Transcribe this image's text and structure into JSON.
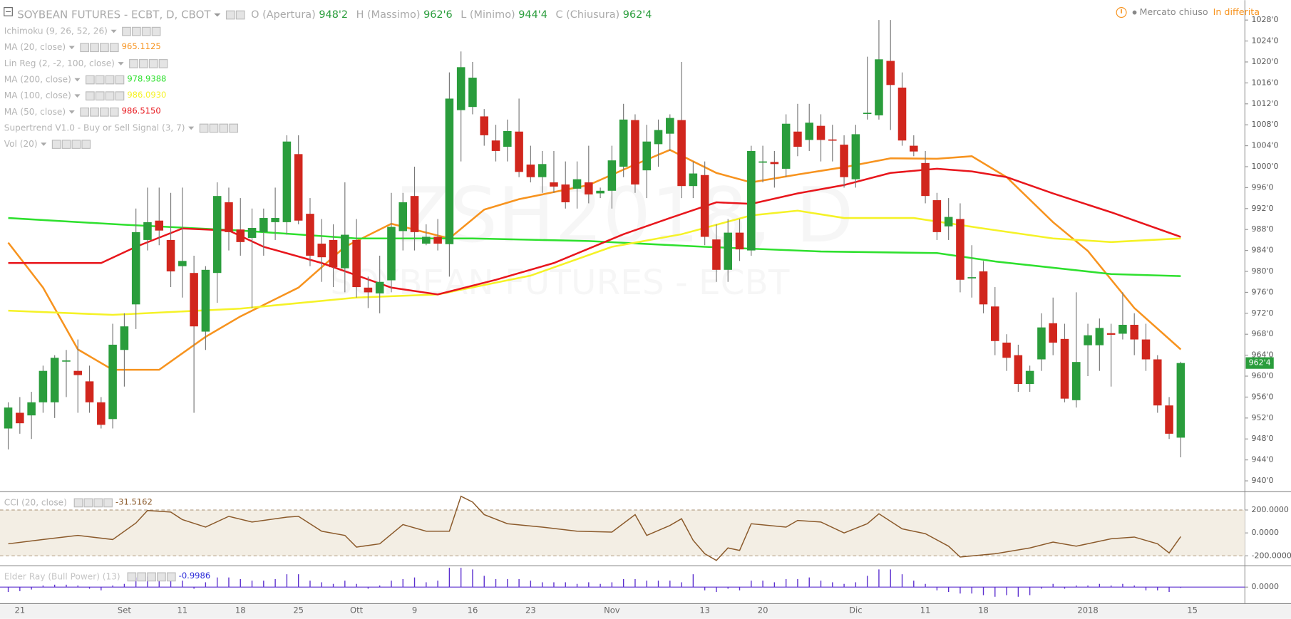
{
  "chart_data": [
    {
      "type": "candlestick",
      "title": "SOYBEAN FUTURES - ECBT, D, CBOT",
      "quote": [
        {
          "label": "O (Apertura)",
          "value": "948'2"
        },
        {
          "label": "H (Massimo)",
          "value": "962'6"
        },
        {
          "label": "L (Minimo)",
          "value": "944'4"
        },
        {
          "label": "C (Chiusura)",
          "value": "962'4"
        }
      ],
      "status": "Mercato chiuso",
      "delay": "In differita",
      "watermark": [
        "ZSH2018, D",
        "SOYBEAN FUTURES - ECBT"
      ],
      "up_color": "#2a9d3c",
      "down_color": "#d1261d",
      "categories": [
        null,
        "21",
        null,
        null,
        null,
        null,
        null,
        null,
        null,
        null,
        "Set",
        null,
        null,
        null,
        null,
        "11",
        null,
        null,
        null,
        null,
        "18",
        null,
        null,
        null,
        null,
        "25",
        null,
        null,
        null,
        null,
        "Ott",
        null,
        null,
        null,
        null,
        "9",
        null,
        null,
        null,
        null,
        "16",
        null,
        null,
        null,
        null,
        "23",
        null,
        null,
        null,
        null,
        null,
        null,
        "Nov",
        null,
        null,
        null,
        null,
        null,
        null,
        null,
        "13",
        null,
        null,
        null,
        null,
        "20",
        null,
        null,
        null,
        null,
        null,
        null,
        null,
        "Dic",
        null,
        null,
        null,
        null,
        null,
        "11",
        null,
        null,
        null,
        null,
        "18",
        null,
        null,
        null,
        null,
        null,
        null,
        null,
        null,
        "2018",
        null,
        null,
        null,
        null,
        null,
        null,
        null,
        null,
        "15"
      ],
      "open": [
        950,
        953,
        952.5,
        955,
        955,
        963,
        961,
        959,
        955,
        951.8,
        965,
        973.7,
        986,
        989.7,
        986,
        981,
        979.7,
        968.5,
        979.7,
        993.2,
        988,
        986.4,
        987.5,
        989.4,
        989.4,
        1002.4,
        991,
        985.3,
        986,
        980.6,
        986,
        976.9,
        975.8,
        978.3,
        987.7,
        994.4,
        985.3,
        986.6,
        985.2,
        1010.8,
        1011.4,
        1009.6,
        1005,
        1003.8,
        1006.7,
        1000.4,
        998,
        997,
        996.6,
        995.8,
        997,
        994.9,
        995.4,
        1000,
        1008.9,
        999.3,
        1004.3,
        1006.3,
        1008.9,
        996.3,
        998.4,
        986.1,
        980.3,
        987.4,
        984,
        1001,
        1000.9,
        999.6,
        1006.7,
        1005.1,
        1007.8,
        1005.2,
        1004.2,
        997.6,
        1010.3,
        1009.8,
        1020.2,
        1015.1,
        1004,
        1000.7,
        993.6,
        988.6,
        990,
        978.9,
        980,
        973.3,
        966.4,
        964,
        958.5,
        963.2,
        970.1,
        967.1,
        955.4,
        965.9,
        965.9,
        968.2,
        968.1,
        969.8,
        967,
        963.2,
        954.4,
        948.25,
        null
      ],
      "high": [
        955,
        956,
        957,
        962,
        964,
        965,
        967,
        962,
        956,
        970,
        972,
        992,
        996,
        996,
        995,
        996,
        983,
        981,
        997,
        996,
        994,
        992,
        992,
        996,
        1006,
        1006,
        994,
        990,
        989,
        997,
        990,
        979,
        983,
        995,
        995,
        1000,
        989,
        990,
        1018,
        1022,
        1020,
        1011,
        1008,
        1009,
        1013,
        1004,
        1003,
        1003,
        1001,
        1001,
        1004,
        996,
        1004,
        1012,
        1010,
        1008,
        1009,
        1010,
        1020,
        1001,
        1001,
        989,
        990,
        990,
        1004,
        1004,
        1003,
        1010,
        1012,
        1012,
        1010,
        1008,
        1006,
        1008,
        1021,
        1028,
        1028,
        1018,
        1006,
        1003,
        995,
        994,
        993,
        985,
        982,
        977,
        968,
        966,
        962,
        972,
        975,
        970,
        976,
        970,
        971,
        970,
        976,
        972,
        970,
        964,
        956,
        962.75,
        null
      ],
      "low": [
        946,
        949,
        948,
        953,
        952,
        956,
        953,
        953,
        950,
        950,
        958,
        969,
        984,
        985,
        977,
        975,
        953,
        965,
        974,
        984,
        983,
        973,
        983,
        986,
        987,
        989,
        981,
        978,
        977,
        976,
        975,
        973,
        972,
        976,
        984,
        984,
        985,
        984,
        979,
        1001,
        1010,
        1004,
        1001,
        1001,
        998,
        997,
        995,
        995,
        992,
        992,
        993,
        994,
        992,
        998,
        995,
        994,
        1000,
        1003,
        994,
        994,
        985,
        978,
        978,
        982,
        983,
        997,
        996,
        998,
        1002,
        1003,
        1001,
        1001,
        996,
        996,
        1009,
        1009,
        1007,
        1004,
        1002,
        993,
        986,
        986,
        976,
        975,
        972,
        964,
        961,
        957,
        957,
        961,
        964,
        955,
        954,
        960,
        961,
        958,
        967,
        964,
        961,
        953,
        948,
        944.5,
        null
      ],
      "close": [
        954,
        951,
        955,
        961,
        963.5,
        963,
        960.2,
        955,
        950.7,
        966,
        969.5,
        987.5,
        989.4,
        987.8,
        980,
        982,
        969.5,
        980.3,
        994.4,
        987.5,
        985.6,
        988.3,
        990.2,
        990.2,
        1004.8,
        989.7,
        983,
        982.7,
        980.8,
        987,
        977,
        976,
        978,
        988.5,
        993.2,
        987.5,
        986.6,
        985.3,
        1013,
        1019,
        1017,
        1006,
        1003,
        1006.8,
        999,
        998,
        1000.5,
        996.2,
        993.2,
        997.6,
        994.7,
        995.4,
        1001.2,
        1009,
        996.6,
        1004.8,
        1007,
        1009.3,
        996.3,
        998.7,
        986.6,
        980.3,
        987.4,
        984.2,
        1003,
        1001,
        1000.5,
        1008.2,
        1003.8,
        1008.4,
        1005.1,
        1005.1,
        998,
        1006.2,
        1010.3,
        1020.5,
        1015.6,
        1005,
        1002.9,
        994.4,
        987.5,
        990.4,
        978.4,
        978.9,
        973.7,
        966.7,
        963.5,
        958.5,
        961,
        969.3,
        966.4,
        955.7,
        962.7,
        967.8,
        969.2,
        967.9,
        969.8,
        967,
        963.2,
        954.4,
        949,
        962.5,
        null
      ],
      "ylim": [
        938,
        1031.8
      ],
      "yticks": [
        {
          "value": 940,
          "label": "940'0"
        },
        {
          "value": 944,
          "label": "944'0"
        },
        {
          "value": 948,
          "label": "948'0"
        },
        {
          "value": 952,
          "label": "952'0"
        },
        {
          "value": 956,
          "label": "956'0"
        },
        {
          "value": 960,
          "label": "960'0"
        },
        {
          "value": 964,
          "label": "964'0"
        },
        {
          "value": 968,
          "label": "968'0"
        },
        {
          "value": 972,
          "label": "972'0"
        },
        {
          "value": 976,
          "label": "976'0"
        },
        {
          "value": 980,
          "label": "980'0"
        },
        {
          "value": 984,
          "label": "984'0"
        },
        {
          "value": 988,
          "label": "988'0"
        },
        {
          "value": 992,
          "label": "992'0"
        },
        {
          "value": 996,
          "label": "996'0"
        },
        {
          "value": 1000,
          "label": "1000'0"
        },
        {
          "value": 1004,
          "label": "1004'0"
        },
        {
          "value": 1008,
          "label": "1008'0"
        },
        {
          "value": 1012,
          "label": "1012'0"
        },
        {
          "value": 1016,
          "label": "1016'0"
        },
        {
          "value": 1020,
          "label": "1020'0"
        },
        {
          "value": 1024,
          "label": "1024'0"
        },
        {
          "value": 1028,
          "label": "1028'0"
        }
      ],
      "studies": [
        {
          "name": "Ichimoku (9, 26, 52, 26)"
        },
        {
          "name": "MA (20, close)",
          "last": "965.1125",
          "color": "#f7931e",
          "x": [
            0,
            3,
            6,
            9,
            13,
            17,
            20,
            25,
            29,
            33,
            38,
            41,
            44,
            50,
            54,
            57,
            61,
            64,
            68,
            72,
            76,
            80,
            83,
            86,
            90,
            93,
            97,
            101
          ],
          "values": [
            985.5,
            976.9,
            965.1,
            961.2,
            961.2,
            967.5,
            971.4,
            976.9,
            984.7,
            989.1,
            986.3,
            991.8,
            993.8,
            996.5,
            1000.4,
            1003.2,
            998.8,
            997,
            998.5,
            999.9,
            1001.6,
            1001.5,
            1002,
            998,
            989.4,
            983.9,
            973,
            965.1
          ]
        },
        {
          "name": "Lin Reg (2, -2, 100, close)"
        },
        {
          "name": "MA (200, close)",
          "last": "978.9388",
          "color": "#2ee02e",
          "x": [
            0,
            10,
            20,
            30,
            40,
            50,
            60,
            70,
            80,
            85,
            95,
            101
          ],
          "values": [
            990.2,
            988.9,
            987.8,
            986.3,
            986.3,
            985.8,
            984.7,
            983.8,
            983.5,
            981.9,
            979.5,
            979.1
          ]
        },
        {
          "name": "MA (100, close)",
          "last": "986.0930",
          "color": "#f5f227",
          "x": [
            0,
            9,
            20,
            30,
            37,
            45,
            52,
            58,
            64,
            68,
            72,
            78,
            84,
            90,
            95,
            101
          ],
          "values": [
            972.5,
            971.7,
            972.9,
            975,
            975.6,
            979.2,
            984.7,
            987.1,
            990.7,
            991.6,
            990.2,
            990.2,
            988.2,
            986.3,
            985.6,
            986.3
          ]
        },
        {
          "name": "MA (50, close)",
          "last": "986.5150",
          "color": "#e8161c",
          "x": [
            0,
            8,
            11,
            15,
            19,
            22,
            27,
            33,
            37,
            42,
            47,
            53,
            57,
            61,
            64,
            68,
            72,
            76,
            80,
            83,
            86,
            90,
            95,
            101
          ],
          "values": [
            981.6,
            981.6,
            984.7,
            988.2,
            987.8,
            984.7,
            981.6,
            976.9,
            975.6,
            978.4,
            981.6,
            987.1,
            990.2,
            993.2,
            992.9,
            994.9,
            996.5,
            998.8,
            999.6,
            999.1,
            998,
            994.9,
            991.3,
            986.6
          ]
        },
        {
          "name": "Supertrend V1.0 - Buy or Sell Signal (3, 7)"
        },
        {
          "name": "Vol (20)"
        }
      ]
    },
    {
      "type": "line",
      "name": "CCI (20, close)",
      "last": "-31.5162",
      "color": "#8b5a2b",
      "band_color": "#f3eee4",
      "x": [
        0,
        3,
        6,
        9,
        11,
        12,
        14,
        15,
        17,
        19,
        21,
        24,
        25,
        27,
        29,
        30,
        32,
        34,
        36,
        38,
        39,
        40,
        41,
        43,
        46,
        49,
        52,
        54,
        55,
        57,
        58,
        59,
        60,
        61,
        62,
        63,
        64,
        67,
        68,
        70,
        72,
        74,
        75,
        77,
        79,
        81,
        82,
        85,
        88,
        90,
        92,
        95,
        97,
        99,
        100,
        101
      ],
      "values": [
        -95,
        -58,
        -22,
        -58,
        87,
        196,
        182,
        116,
        51,
        145,
        95,
        138,
        145,
        15,
        -22,
        -124,
        -95,
        73,
        15,
        15,
        320,
        269,
        160,
        80,
        51,
        15,
        7,
        160,
        -22,
        65,
        124,
        -65,
        -182,
        -240,
        -131,
        -153,
        80,
        51,
        109,
        95,
        0,
        80,
        167,
        36,
        -7,
        -116,
        -211,
        -182,
        -131,
        -80,
        -116,
        -51,
        -36,
        -95,
        -175,
        -31.5
      ],
      "ylim": [
        -276,
        356
      ],
      "yticks": [
        {
          "value": 200,
          "label": "200.0000"
        },
        {
          "value": 0,
          "label": "0.0000"
        },
        {
          "value": -200,
          "label": "-200.0000"
        }
      ]
    },
    {
      "type": "bar",
      "name": "Elder Ray (Bull Power) (13)",
      "last": "-0.9986",
      "color": "#5b2fcf",
      "values": [
        -6,
        -5,
        -3,
        2,
        3,
        3,
        2,
        -2,
        -4,
        2,
        4,
        12,
        13,
        14,
        12,
        8,
        -2,
        6,
        12,
        12,
        10,
        8,
        8,
        10,
        16,
        16,
        8,
        6,
        4,
        8,
        4,
        -2,
        2,
        8,
        10,
        12,
        6,
        8,
        24,
        24,
        22,
        14,
        10,
        10,
        10,
        8,
        6,
        6,
        6,
        4,
        6,
        4,
        6,
        10,
        10,
        8,
        8,
        8,
        6,
        16,
        -4,
        -6,
        -2,
        -4,
        8,
        8,
        6,
        10,
        10,
        12,
        8,
        6,
        4,
        6,
        14,
        22,
        22,
        16,
        8,
        4,
        -4,
        -6,
        -8,
        -8,
        -10,
        -12,
        -10,
        -12,
        -10,
        -2,
        4,
        -2,
        2,
        2,
        4,
        2,
        4,
        2,
        -4,
        -4,
        -6,
        -1,
        null
      ],
      "ylim": [
        -20,
        26
      ],
      "yticks": [
        {
          "value": 0,
          "label": "0.0000"
        }
      ]
    }
  ]
}
